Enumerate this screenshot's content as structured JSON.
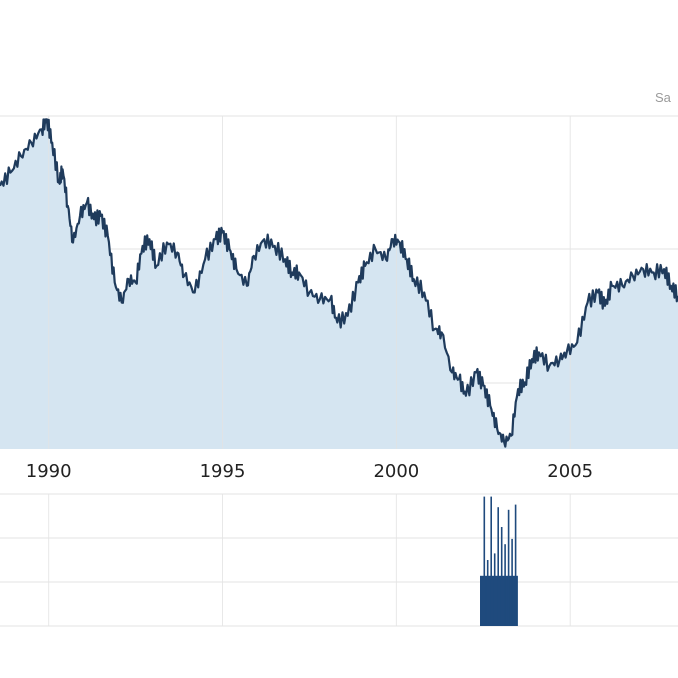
{
  "corner_label": "Sa",
  "colors": {
    "area_fill": "#d5e5f1",
    "line": "#1f3b5c",
    "volume": "#1f4a7d",
    "grid": "#e3e3e3"
  },
  "chart_data": {
    "type": "area",
    "title": "",
    "xlabel": "",
    "ylabel": "",
    "x_ticks": [
      {
        "label": "1990",
        "value": 1990
      },
      {
        "label": "1995",
        "value": 1995
      },
      {
        "label": "2000",
        "value": 2000
      },
      {
        "label": "2005",
        "value": 2005
      }
    ],
    "xlim": [
      1988.6,
      2008.1
    ],
    "ylim": [
      0,
      100
    ],
    "grid": true,
    "price_series": {
      "x": [
        1988.6,
        1988.9,
        1989.2,
        1989.5,
        1989.8,
        1989.95,
        1990.1,
        1990.3,
        1990.4,
        1990.55,
        1990.7,
        1990.9,
        1991.1,
        1991.3,
        1991.5,
        1991.7,
        1991.9,
        1992.1,
        1992.3,
        1992.5,
        1992.7,
        1992.9,
        1993.1,
        1993.4,
        1993.7,
        1993.9,
        1994.2,
        1994.5,
        1994.8,
        1995.0,
        1995.2,
        1995.4,
        1995.7,
        1995.9,
        1996.2,
        1996.5,
        1996.8,
        1997.0,
        1997.2,
        1997.5,
        1997.8,
        1998.1,
        1998.3,
        1998.6,
        1998.9,
        1999.1,
        1999.4,
        1999.7,
        1999.9,
        2000.1,
        2000.3,
        2000.5,
        2000.8,
        2001.1,
        2001.3,
        2001.6,
        2001.8,
        2002.0,
        2002.3,
        2002.5,
        2002.7,
        2002.9,
        2003.1,
        2003.3,
        2003.5,
        2003.7,
        2003.9,
        2004.1,
        2004.4,
        2004.7,
        2004.9,
        2005.2,
        2005.5,
        2005.8,
        2006.0,
        2006.2,
        2006.5,
        2006.8,
        2007.1,
        2007.4,
        2007.7,
        2007.9,
        2008.1
      ],
      "y": [
        79,
        83,
        88,
        92,
        96,
        99,
        92,
        80,
        84,
        73,
        62,
        70,
        74,
        69,
        70,
        64,
        50,
        44,
        51,
        50,
        61,
        63,
        55,
        62,
        59,
        52,
        47,
        57,
        63,
        65,
        60,
        54,
        49,
        58,
        63,
        61,
        57,
        53,
        53,
        47,
        45,
        45,
        38,
        40,
        50,
        55,
        60,
        57,
        63,
        62,
        57,
        51,
        47,
        36,
        35,
        23,
        21,
        16,
        23,
        19,
        13,
        6,
        2,
        4,
        18,
        20,
        27,
        29,
        25,
        27,
        29,
        32,
        44,
        47,
        43,
        49,
        49,
        52,
        54,
        53,
        54,
        49,
        46
      ]
    },
    "volume_series": {
      "x": [
        2002.45,
        2002.55,
        2002.65,
        2002.75,
        2002.85,
        2002.95,
        2003.05,
        2003.15,
        2003.25,
        2003.35,
        2003.45
      ],
      "y": [
        35,
        98,
        50,
        98,
        55,
        90,
        75,
        62,
        88,
        66,
        92
      ],
      "ylim": [
        0,
        100
      ]
    }
  }
}
